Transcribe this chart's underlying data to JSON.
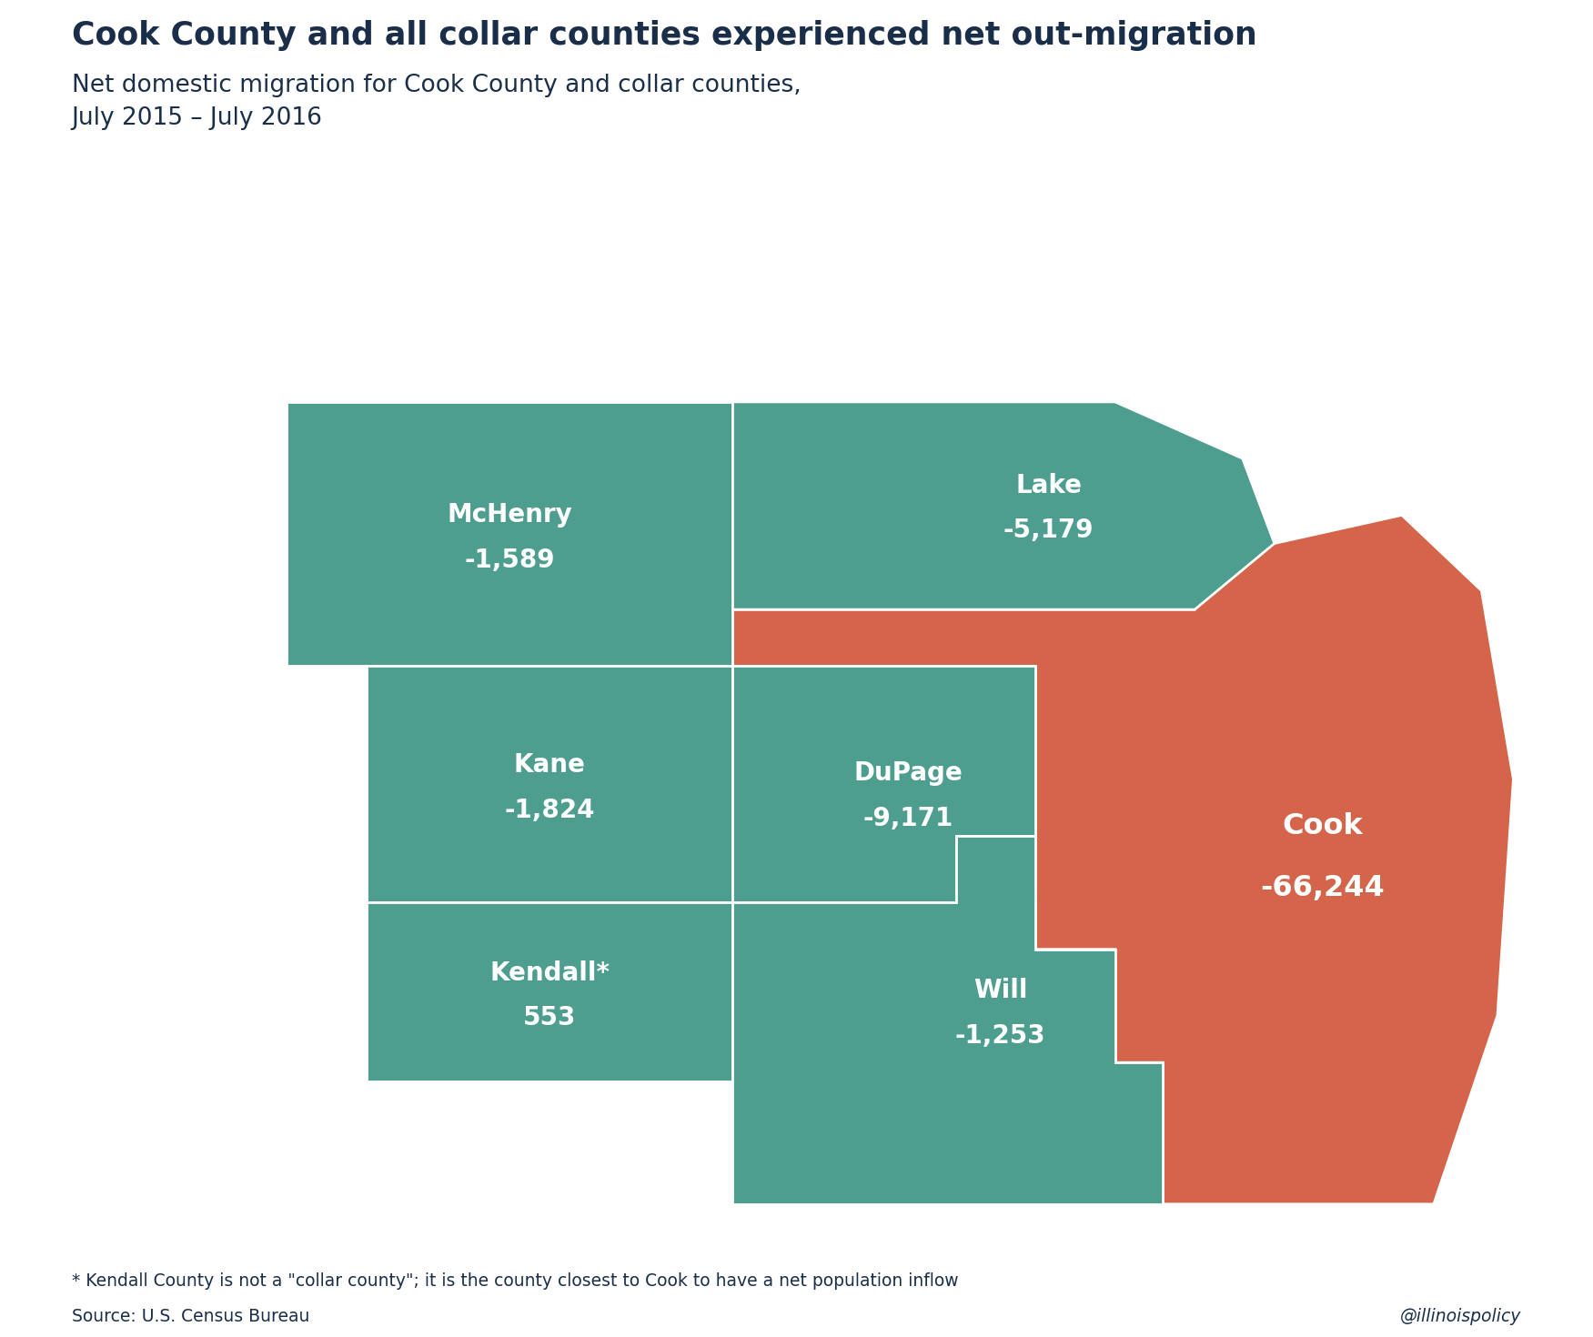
{
  "title": "Cook County and all collar counties experienced net out-migration",
  "subtitle": "Net domestic migration for Cook County and collar counties,\nJuly 2015 – July 2016",
  "footnote": "* Kendall County is not a \"collar county\"; it is the county closest to Cook to have a net population inflow",
  "source": "Source: U.S. Census Bureau",
  "watermark": "@illinoispolicy",
  "teal_color": "#4d9e8f",
  "orange_color": "#d4654a",
  "bg_color": "#ffffff",
  "title_color": "#1a2e4a",
  "text_color": "#ffffff"
}
